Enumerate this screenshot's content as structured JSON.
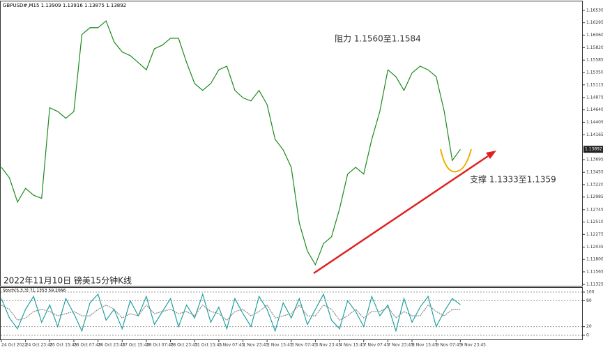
{
  "chart_data": [
    {
      "type": "line",
      "title": "GBPUSD#,M15  1.13909 1.13916 1.13875 1.13892",
      "annotations": [
        "阻力 1.1560至1.1584",
        "支撑 1.1333至1.1359",
        "2022年11月10日 镑美15分钟K线"
      ],
      "color": "#1a8a1a",
      "values": [
        1.1355,
        1.1335,
        1.1289,
        1.1315,
        1.1302,
        1.1296,
        1.1468,
        1.1461,
        1.1448,
        1.1461,
        1.1607,
        1.162,
        1.162,
        1.1633,
        1.1593,
        1.1574,
        1.1567,
        1.1554,
        1.154,
        1.158,
        1.1587,
        1.16,
        1.16,
        1.1554,
        1.1514,
        1.1501,
        1.1514,
        1.154,
        1.1547,
        1.1501,
        1.1487,
        1.1481,
        1.1501,
        1.1474,
        1.1408,
        1.1388,
        1.1355,
        1.1249,
        1.1196,
        1.117,
        1.121,
        1.1223,
        1.1276,
        1.1342,
        1.1355,
        1.1342,
        1.1408,
        1.1461,
        1.154,
        1.1527,
        1.1501,
        1.1534,
        1.1547,
        1.154,
        1.1527,
        1.1461,
        1.1368,
        1.1389
      ],
      "last_price": 1.13892,
      "ylim": [
        1.113,
        1.167
      ],
      "yticks": [
        {
          "value": 1.1653,
          "label": "1.16530"
        },
        {
          "value": 1.16295,
          "label": "1.16295"
        },
        {
          "value": 1.1606,
          "label": "1.16060"
        },
        {
          "value": 1.1582,
          "label": "1.15820"
        },
        {
          "value": 1.15585,
          "label": "1.15585"
        },
        {
          "value": 1.1535,
          "label": "1.15350"
        },
        {
          "value": 1.15115,
          "label": "1.15115"
        },
        {
          "value": 1.14875,
          "label": "1.14875"
        },
        {
          "value": 1.1464,
          "label": "1.14640"
        },
        {
          "value": 1.14405,
          "label": "1.14405"
        },
        {
          "value": 1.14165,
          "label": "1.14165"
        },
        {
          "value": 1.13695,
          "label": "1.13695"
        },
        {
          "value": 1.13455,
          "label": "1.13455"
        },
        {
          "value": 1.1322,
          "label": "1.13220"
        },
        {
          "value": 1.12985,
          "label": "1.12985"
        },
        {
          "value": 1.12745,
          "label": "1.12745"
        },
        {
          "value": 1.1251,
          "label": "1.12510"
        },
        {
          "value": 1.12275,
          "label": "1.12275"
        },
        {
          "value": 1.12035,
          "label": "1.12035"
        },
        {
          "value": 1.118,
          "label": "1.11800"
        },
        {
          "value": 1.11565,
          "label": "1.11565"
        },
        {
          "value": 1.11325,
          "label": "1.11325"
        }
      ]
    },
    {
      "type": "line",
      "title": "Stoch(5,3,3) 71.1353 59.2066",
      "categories": [
        "24 Oct 2022",
        null,
        null,
        "24 Oct 23:45",
        null,
        null,
        "25 Oct 15:45",
        null,
        null,
        "26 Oct 07:45",
        null,
        null,
        "26 Oct 23:45",
        null,
        null,
        "27 Oct 15:45",
        null,
        null,
        "28 Oct 07:45",
        null,
        null,
        "28 Oct 23:45",
        null,
        null,
        "31 Oct 15:45",
        null,
        null,
        "1 Nov 07:45",
        null,
        null,
        "1 Nov 23:45",
        null,
        null,
        "2 Nov 15:45",
        null,
        null,
        "3 Nov 07:45",
        null,
        null,
        "3 Nov 23:45",
        null,
        null,
        "4 Nov 15:45",
        null,
        null,
        "7 Nov 07:45",
        null,
        null,
        "7 Nov 23:45",
        null,
        null,
        "8 Nov 15:45",
        null,
        null,
        "9 Nov 07:45",
        null,
        null,
        "9 Nov 23:45"
      ],
      "series": [
        {
          "color": "#20a0a0",
          "values": [
            85,
            40,
            15,
            60,
            90,
            30,
            70,
            20,
            85,
            50,
            10,
            75,
            95,
            35,
            60,
            15,
            80,
            45,
            90,
            25,
            55,
            85,
            20,
            70,
            40,
            95,
            30,
            65,
            15,
            85,
            50,
            20,
            90,
            60,
            10,
            75,
            40,
            85,
            25,
            60,
            95,
            35,
            15,
            80,
            55,
            20,
            90,
            45,
            70,
            10,
            85,
            30,
            65,
            90,
            20,
            55,
            85,
            71
          ]
        },
        {
          "color": "#888888",
          "values": [
            70,
            60,
            35,
            40,
            55,
            60,
            55,
            45,
            50,
            55,
            45,
            45,
            60,
            70,
            60,
            40,
            50,
            45,
            70,
            50,
            55,
            60,
            50,
            55,
            45,
            70,
            55,
            50,
            35,
            55,
            60,
            45,
            55,
            70,
            40,
            45,
            50,
            70,
            45,
            45,
            70,
            60,
            35,
            45,
            60,
            40,
            55,
            55,
            65,
            40,
            55,
            45,
            45,
            70,
            55,
            45,
            60,
            59
          ]
        }
      ],
      "ylim": [
        0,
        100
      ],
      "yticks": [
        100,
        80,
        20,
        0
      ]
    }
  ]
}
